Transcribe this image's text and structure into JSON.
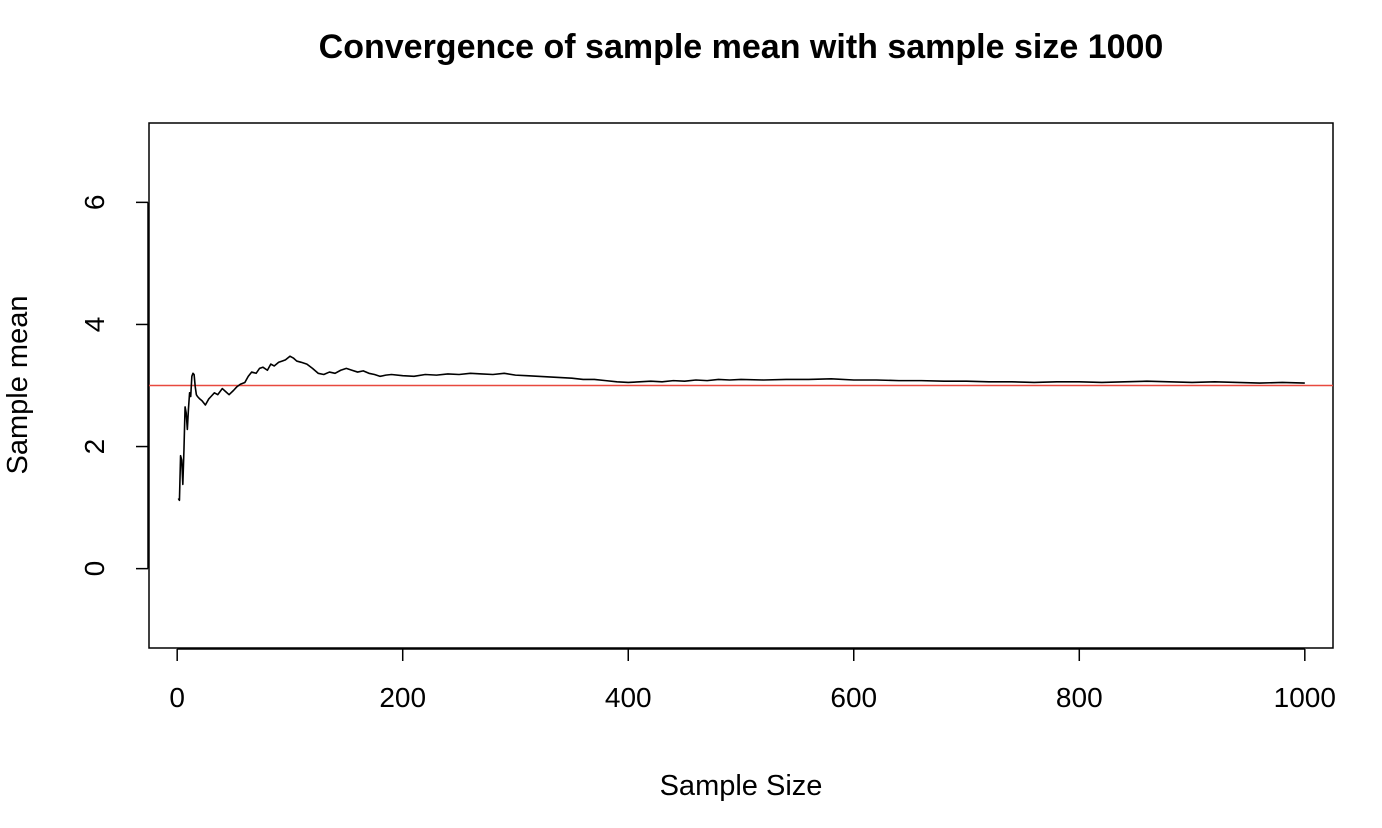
{
  "chart_data": {
    "type": "line",
    "title": "Convergence of sample mean with sample size 1000",
    "xlabel": "Sample Size",
    "ylabel": "Sample mean",
    "xlim": [
      -25,
      1025
    ],
    "ylim": [
      -1.3,
      7.3
    ],
    "x_ticks": [
      0,
      200,
      400,
      600,
      800,
      1000
    ],
    "y_ticks": [
      0,
      2,
      4,
      6
    ],
    "x_tick_labels": [
      "0",
      "200",
      "400",
      "600",
      "800",
      "1000"
    ],
    "y_tick_labels": [
      "0",
      "2",
      "4",
      "6"
    ],
    "grid": false,
    "reference_line": {
      "y": 3,
      "color": "#e8493f"
    },
    "series": [
      {
        "color": "#000000",
        "x": [
          1,
          2,
          3,
          4,
          5,
          6,
          7,
          8,
          9,
          10,
          11,
          12,
          13,
          14,
          15,
          16,
          17,
          18,
          20,
          22,
          25,
          28,
          30,
          33,
          36,
          40,
          43,
          46,
          50,
          53,
          56,
          60,
          63,
          66,
          70,
          73,
          76,
          80,
          83,
          86,
          90,
          93,
          96,
          100,
          103,
          106,
          110,
          115,
          120,
          125,
          130,
          135,
          140,
          145,
          150,
          155,
          160,
          165,
          170,
          175,
          180,
          185,
          190,
          200,
          210,
          220,
          230,
          240,
          250,
          260,
          270,
          280,
          290,
          300,
          310,
          320,
          330,
          340,
          350,
          360,
          370,
          380,
          390,
          400,
          410,
          420,
          430,
          440,
          450,
          460,
          470,
          480,
          490,
          500,
          520,
          540,
          560,
          580,
          600,
          620,
          640,
          660,
          680,
          700,
          720,
          740,
          760,
          780,
          800,
          820,
          840,
          860,
          880,
          900,
          920,
          940,
          960,
          980,
          1000
        ],
        "y": [
          1.15,
          1.12,
          1.85,
          1.78,
          1.38,
          1.95,
          2.65,
          2.55,
          2.28,
          2.62,
          2.88,
          2.82,
          3.15,
          3.2,
          3.18,
          2.98,
          2.85,
          2.82,
          2.78,
          2.75,
          2.68,
          2.78,
          2.82,
          2.88,
          2.85,
          2.95,
          2.9,
          2.85,
          2.92,
          2.98,
          3.02,
          3.05,
          3.15,
          3.22,
          3.2,
          3.28,
          3.3,
          3.25,
          3.35,
          3.32,
          3.38,
          3.4,
          3.42,
          3.48,
          3.45,
          3.4,
          3.38,
          3.35,
          3.28,
          3.2,
          3.18,
          3.22,
          3.2,
          3.25,
          3.28,
          3.25,
          3.22,
          3.24,
          3.2,
          3.18,
          3.15,
          3.17,
          3.18,
          3.16,
          3.15,
          3.18,
          3.17,
          3.19,
          3.18,
          3.2,
          3.19,
          3.18,
          3.2,
          3.17,
          3.16,
          3.15,
          3.14,
          3.13,
          3.12,
          3.1,
          3.1,
          3.08,
          3.06,
          3.05,
          3.06,
          3.07,
          3.06,
          3.08,
          3.07,
          3.09,
          3.08,
          3.1,
          3.09,
          3.1,
          3.09,
          3.1,
          3.1,
          3.11,
          3.09,
          3.09,
          3.08,
          3.08,
          3.07,
          3.07,
          3.06,
          3.06,
          3.05,
          3.06,
          3.06,
          3.05,
          3.06,
          3.07,
          3.06,
          3.05,
          3.06,
          3.05,
          3.04,
          3.05,
          3.04
        ]
      }
    ]
  }
}
